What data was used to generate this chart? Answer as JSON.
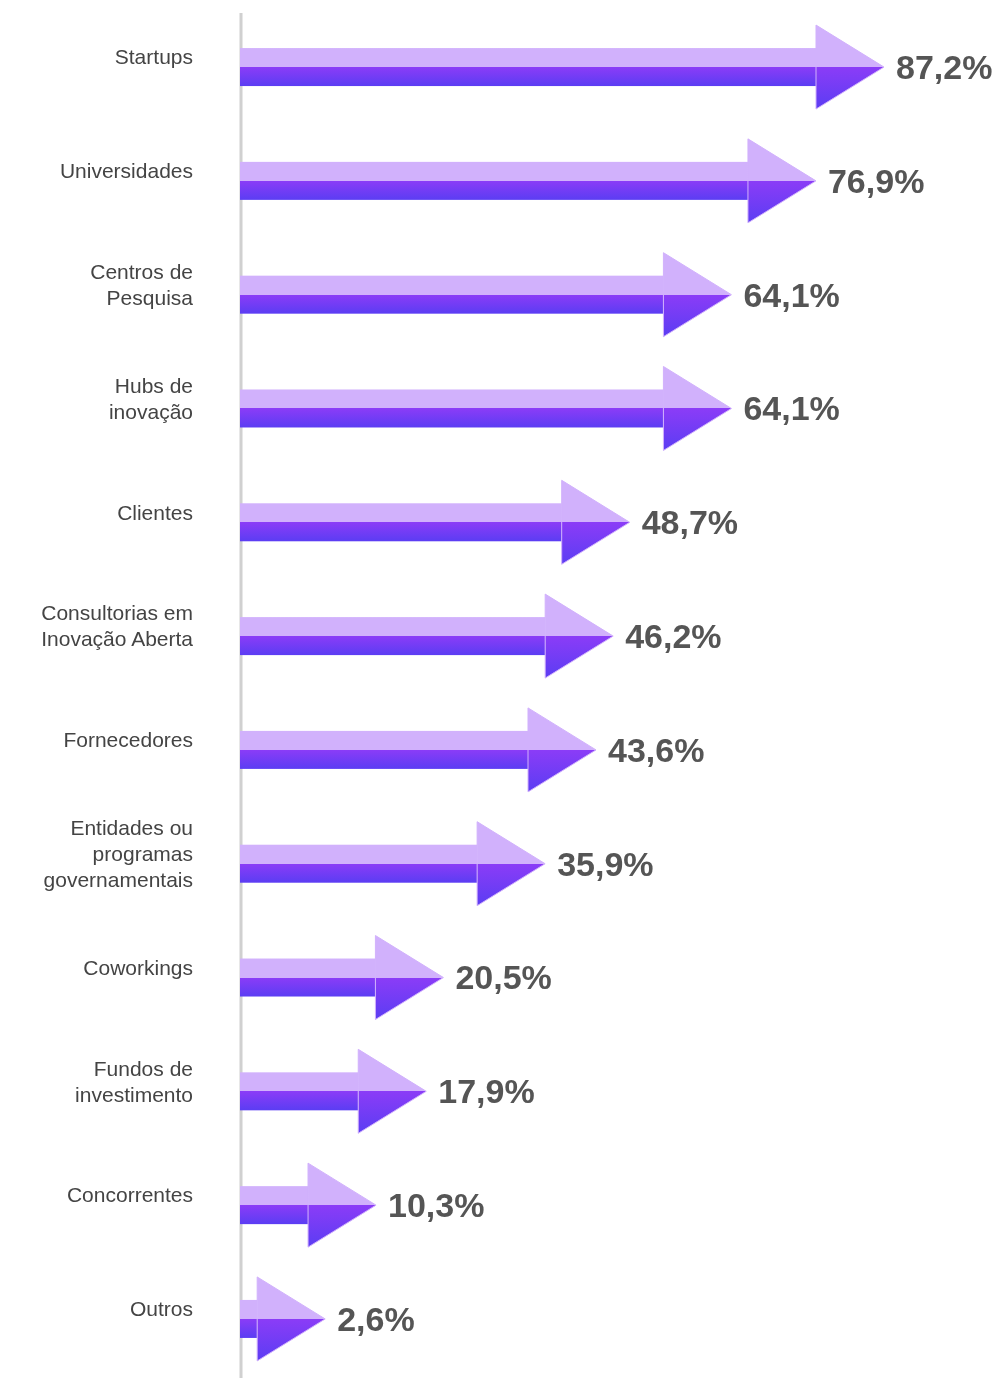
{
  "chart_data": {
    "type": "bar",
    "orientation": "horizontal",
    "categories": [
      "Startups",
      "Universidades",
      "Centros de Pesquisa",
      "Hubs de inovação",
      "Clientes",
      "Consultorias em Inovação Aberta",
      "Fornecedores",
      "Entidades ou programas governamentais",
      "Coworkings",
      "Fundos de investimento",
      "Concorrentes",
      "Outros"
    ],
    "values": [
      87.2,
      76.9,
      64.1,
      64.1,
      48.7,
      46.2,
      43.6,
      35.9,
      20.5,
      17.9,
      10.3,
      2.6
    ],
    "value_labels": [
      "87,2%",
      "76,9%",
      "64,1%",
      "64,1%",
      "48,7%",
      "46,2%",
      "43,6%",
      "35,9%",
      "20,5%",
      "17,9%",
      "10,3%",
      "2,6%"
    ],
    "color": "#8b3cf7"
  }
}
